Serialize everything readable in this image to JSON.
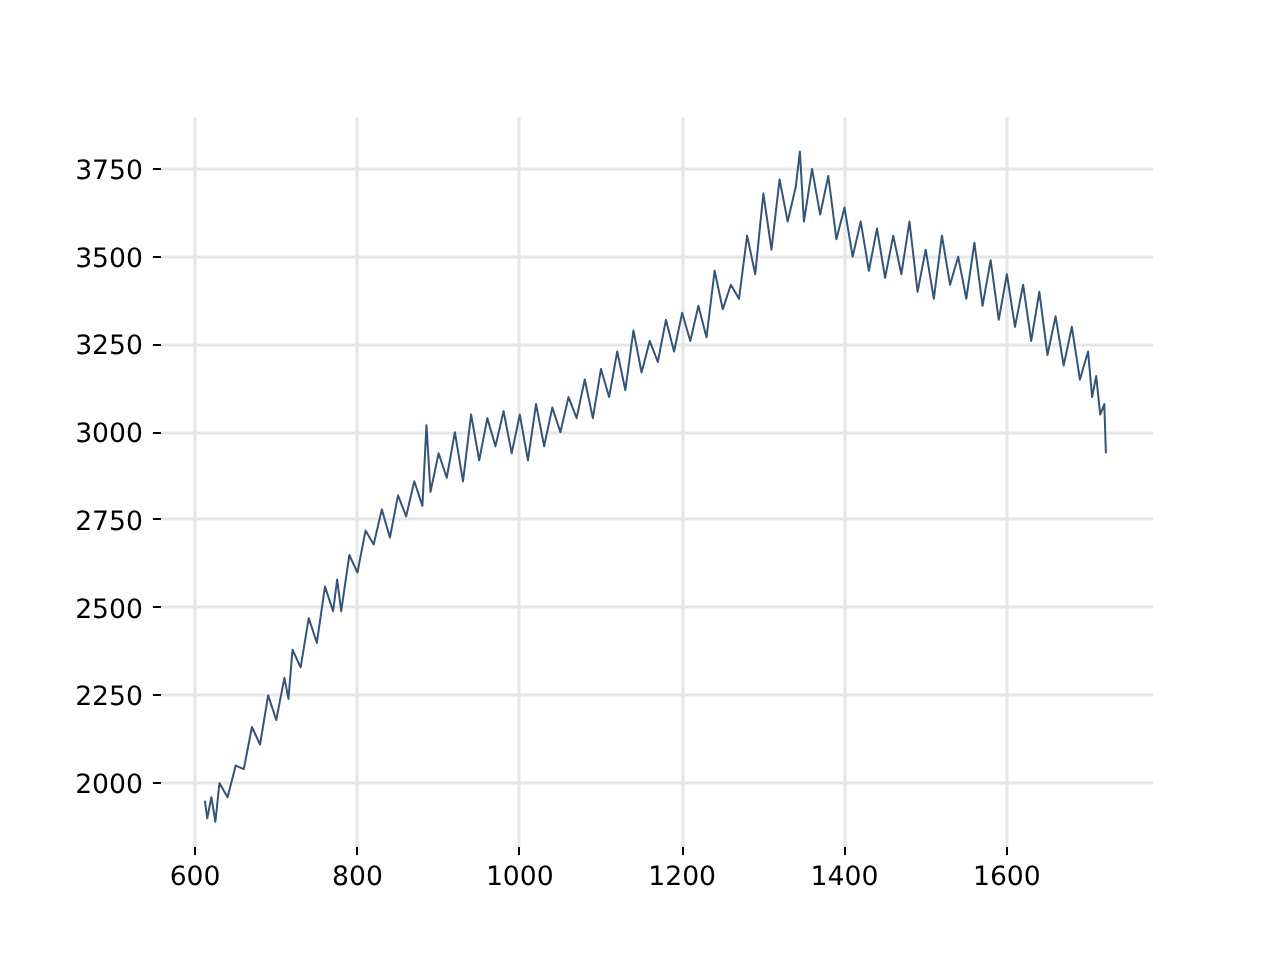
{
  "chart_data": {
    "type": "line",
    "color": "#34557a",
    "grid": true,
    "xlim": [
      558,
      1780
    ],
    "ylim": [
      1818,
      3898
    ],
    "xticks": [
      600,
      800,
      1000,
      1200,
      1400,
      1600
    ],
    "yticks": [
      2000,
      2250,
      2500,
      2750,
      3000,
      3250,
      3500,
      3750
    ],
    "x": [
      612,
      615,
      620,
      625,
      630,
      640,
      650,
      660,
      670,
      680,
      690,
      700,
      710,
      715,
      720,
      730,
      740,
      750,
      760,
      770,
      775,
      780,
      790,
      800,
      810,
      820,
      830,
      840,
      850,
      860,
      870,
      880,
      885,
      890,
      900,
      910,
      920,
      930,
      940,
      950,
      960,
      970,
      980,
      990,
      1000,
      1010,
      1020,
      1030,
      1040,
      1050,
      1060,
      1070,
      1080,
      1090,
      1100,
      1110,
      1120,
      1130,
      1140,
      1150,
      1160,
      1170,
      1180,
      1190,
      1200,
      1210,
      1220,
      1230,
      1240,
      1250,
      1260,
      1270,
      1280,
      1290,
      1300,
      1310,
      1320,
      1330,
      1340,
      1345,
      1350,
      1360,
      1370,
      1380,
      1390,
      1400,
      1410,
      1420,
      1430,
      1440,
      1450,
      1460,
      1470,
      1480,
      1490,
      1500,
      1510,
      1520,
      1530,
      1540,
      1550,
      1560,
      1570,
      1580,
      1590,
      1600,
      1610,
      1620,
      1630,
      1640,
      1650,
      1660,
      1670,
      1680,
      1690,
      1700,
      1705,
      1710,
      1715,
      1720,
      1722
    ],
    "values": [
      1950,
      1900,
      1960,
      1890,
      2000,
      1960,
      2050,
      2040,
      2160,
      2110,
      2250,
      2180,
      2300,
      2240,
      2380,
      2330,
      2470,
      2400,
      2560,
      2490,
      2580,
      2490,
      2650,
      2600,
      2720,
      2680,
      2780,
      2700,
      2820,
      2760,
      2860,
      2790,
      3020,
      2830,
      2940,
      2870,
      3000,
      2860,
      3050,
      2920,
      3040,
      2960,
      3060,
      2940,
      3050,
      2920,
      3080,
      2960,
      3070,
      3000,
      3100,
      3040,
      3150,
      3040,
      3180,
      3100,
      3230,
      3120,
      3290,
      3170,
      3260,
      3200,
      3320,
      3230,
      3340,
      3260,
      3360,
      3270,
      3460,
      3350,
      3420,
      3380,
      3560,
      3450,
      3680,
      3520,
      3720,
      3600,
      3700,
      3800,
      3600,
      3750,
      3620,
      3730,
      3550,
      3640,
      3500,
      3600,
      3460,
      3580,
      3440,
      3560,
      3450,
      3600,
      3400,
      3520,
      3380,
      3560,
      3420,
      3500,
      3380,
      3540,
      3360,
      3490,
      3320,
      3450,
      3300,
      3420,
      3260,
      3400,
      3220,
      3330,
      3190,
      3300,
      3150,
      3230,
      3100,
      3160,
      3050,
      3080,
      2940
    ]
  }
}
